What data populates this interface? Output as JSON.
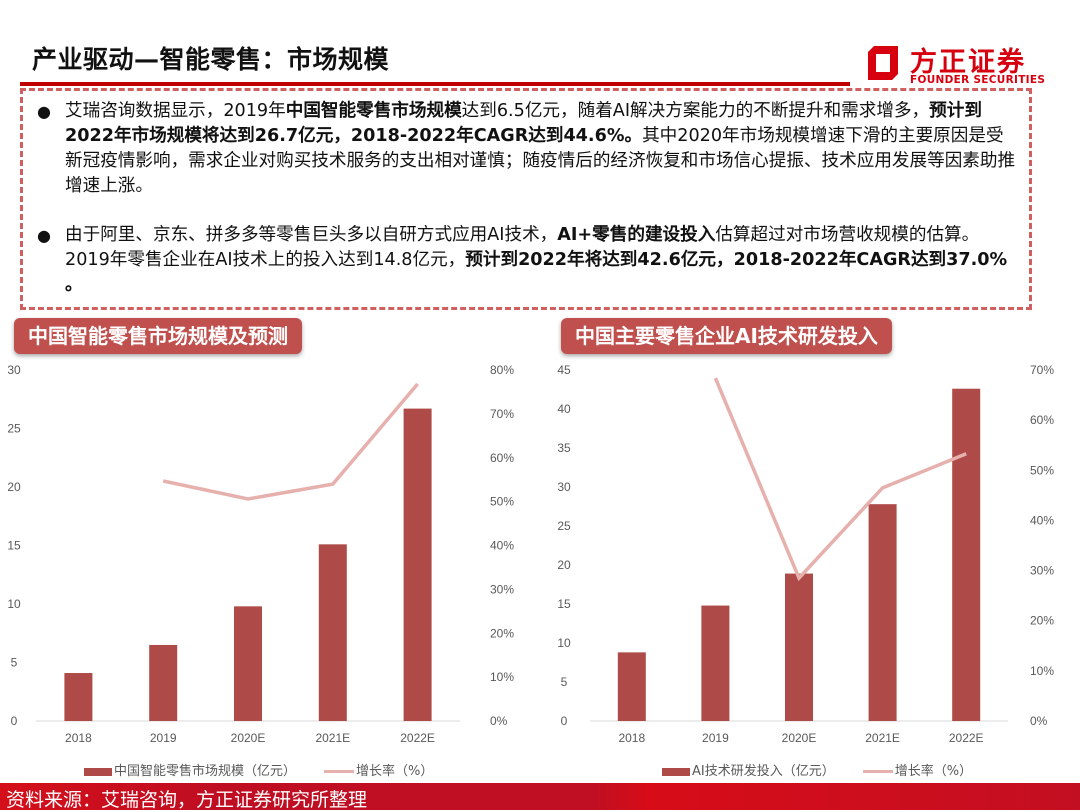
{
  "header": {
    "title": "产业驱动—智能零售：市场规模",
    "logo": {
      "cn": "方正证券",
      "en": "FOUNDER SECURITIES",
      "icon": "founder-logo-icon",
      "brand_color": "#d7000f"
    }
  },
  "bullets": [
    {
      "segments": [
        {
          "text": "艾瑞咨询数据显示，2019年",
          "bold": false
        },
        {
          "text": "中国智能零售市场规模",
          "bold": true
        },
        {
          "text": "达到6.5亿元，随着AI解决方案能力的不断提升和需求增多，",
          "bold": false
        },
        {
          "text": "预计到2022年市场规模将达到26.7亿元，2018-2022年CAGR达到44.6%。",
          "bold": true
        },
        {
          "text": "其中2020年市场规模增速下滑的主要原因是受新冠疫情影响，需求企业对购买技术服务的支出相对谨慎；随疫情后的经济恢复和市场信心提振、技术应用发展等因素助推增速上涨。",
          "bold": false
        }
      ]
    },
    {
      "segments": [
        {
          "text": "由于阿里、京东、拼多多等零售巨头多以自研方式应用AI技术，",
          "bold": false
        },
        {
          "text": "AI+零售的建设投入",
          "bold": true
        },
        {
          "text": "估算超过对市场营收规模的估算。2019年零售企业在AI技术上的投入达到14.8亿元，",
          "bold": false
        },
        {
          "text": "预计到2022年将达到42.6亿元，2018-2022年CAGR达到37.0% 。",
          "bold": true
        }
      ]
    }
  ],
  "colors": {
    "bar": "#ae4a47",
    "line": "#e6b0ad",
    "tag": "#c0504d",
    "accent": "#c00000",
    "footer": "#c00f22"
  },
  "chart_data": [
    {
      "type": "bar",
      "title": "中国智能零售市场规模及预测",
      "categories": [
        "2018",
        "2019",
        "2020E",
        "2021E",
        "2022E"
      ],
      "series": [
        {
          "name": "中国智能零售市场规模（亿元）",
          "type": "bar",
          "axis": "left",
          "values": [
            4.1,
            6.5,
            9.8,
            15.1,
            26.7
          ]
        },
        {
          "name": "增长率（%）",
          "type": "line",
          "axis": "right",
          "values": [
            null,
            54.7,
            50.6,
            54.0,
            76.8
          ]
        }
      ],
      "y_left": {
        "min": 0,
        "max": 30,
        "ticks": [
          "0",
          "5",
          "10",
          "15",
          "20",
          "25",
          "30"
        ]
      },
      "y_right": {
        "min": 0,
        "max": 80,
        "ticks": [
          "0%",
          "10%",
          "20%",
          "30%",
          "40%",
          "50%",
          "60%",
          "70%",
          "80%"
        ]
      },
      "xlabel": "",
      "ylabel": "",
      "grid": false,
      "legend_position": "bottom"
    },
    {
      "type": "bar",
      "title": "中国主要零售企业AI技术研发投入",
      "categories": [
        "2018",
        "2019",
        "2020E",
        "2021E",
        "2022E"
      ],
      "series": [
        {
          "name": "AI技术研发投入（亿元）",
          "type": "bar",
          "axis": "left",
          "values": [
            8.8,
            14.8,
            18.9,
            27.8,
            42.6
          ]
        },
        {
          "name": "增长率（%）",
          "type": "line",
          "axis": "right",
          "values": [
            null,
            68.4,
            28.5,
            46.5,
            53.3
          ]
        }
      ],
      "y_left": {
        "min": 0,
        "max": 45,
        "ticks": [
          "0",
          "5",
          "10",
          "15",
          "20",
          "25",
          "30",
          "35",
          "40",
          "45"
        ]
      },
      "y_right": {
        "min": 0,
        "max": 70,
        "ticks": [
          "0%",
          "10%",
          "20%",
          "30%",
          "40%",
          "50%",
          "60%",
          "70%"
        ]
      },
      "xlabel": "",
      "ylabel": "",
      "grid": false,
      "legend_position": "bottom"
    }
  ],
  "footer": {
    "source": "资料来源：艾瑞咨询，方正证券研究所整理"
  }
}
